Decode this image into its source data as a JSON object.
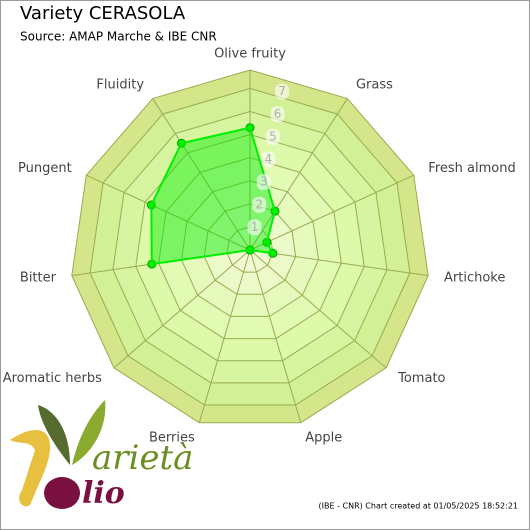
{
  "chart_data": {
    "type": "radar",
    "title": "Variety CERASOLA",
    "subtitle": "Source: AMAP Marche & IBE CNR",
    "categories": [
      "Olive fruity",
      "Grass",
      "Fresh almond",
      "Artichoke",
      "Tomato",
      "Apple",
      "Berries",
      "Aromatic herbs",
      "Bitter",
      "Pungent",
      "Fluidity"
    ],
    "series": [
      {
        "name": "CERASOLA",
        "color": "#00ee00",
        "values": [
          5.3,
          2.0,
          0.8,
          1.0,
          0,
          0,
          0,
          0,
          4.3,
          4.7,
          5.5
        ]
      }
    ],
    "ylim": [
      0,
      7.8
    ],
    "yticks": [
      1,
      2,
      3,
      4,
      5,
      6,
      7
    ],
    "footer": "(IBE - CNR) Chart created at 01/05/2025 18:52:21",
    "logo": {
      "word1": "arietà",
      "word2": "lio"
    }
  }
}
